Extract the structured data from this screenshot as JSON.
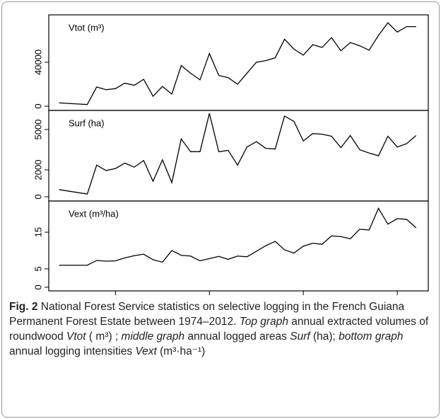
{
  "chart_data": [
    {
      "type": "line",
      "title": "Vtot (m³)",
      "x": [
        1974,
        1977,
        1978,
        1979,
        1980,
        1981,
        1982,
        1983,
        1984,
        1985,
        1986,
        1987,
        1988,
        1989,
        1990,
        1991,
        1992,
        1993,
        1994,
        1995,
        1996,
        1997,
        1998,
        1999,
        2000,
        2001,
        2002,
        2003,
        2004,
        2005,
        2006,
        2007,
        2008,
        2009,
        2010,
        2011,
        2012
      ],
      "values": [
        3000,
        1500,
        17500,
        15000,
        16000,
        21000,
        19000,
        24500,
        9000,
        18000,
        11000,
        37000,
        30000,
        24000,
        48000,
        28000,
        26000,
        20000,
        30000,
        40000,
        41500,
        44000,
        61000,
        52000,
        46500,
        56000,
        53500,
        62500,
        50500,
        58000,
        55000,
        51000,
        64500,
        76000,
        67500,
        72500,
        72500
      ],
      "color": "#000000",
      "ylim": [
        -3870,
        83200
      ],
      "yticks": [
        0,
        40000
      ]
    },
    {
      "type": "line",
      "title": "Surf (ha)",
      "x": [
        1974,
        1977,
        1978,
        1979,
        1980,
        1981,
        1982,
        1983,
        1984,
        1985,
        1986,
        1987,
        1988,
        1989,
        1990,
        1991,
        1992,
        1993,
        1994,
        1995,
        1996,
        1997,
        1998,
        1999,
        2000,
        2001,
        2002,
        2003,
        2004,
        2005,
        2006,
        2007,
        2008,
        2009,
        2010,
        2011,
        2012
      ],
      "values": [
        530,
        200,
        2350,
        1950,
        2100,
        2500,
        2200,
        2700,
        1150,
        2750,
        1050,
        4300,
        3350,
        3350,
        6200,
        3350,
        3450,
        2350,
        3700,
        4100,
        3600,
        3550,
        6000,
        5600,
        4150,
        4700,
        4650,
        4500,
        3650,
        4550,
        3500,
        3250,
        3050,
        4500,
        3700,
        3950,
        4550
      ],
      "color": "#000000",
      "ylim": [
        -316,
        6420
      ],
      "yticks": [
        0,
        2000,
        5000
      ]
    },
    {
      "type": "line",
      "title": "Vext (m³/ha)",
      "x": [
        1974,
        1977,
        1978,
        1979,
        1980,
        1981,
        1982,
        1983,
        1984,
        1985,
        1986,
        1987,
        1988,
        1989,
        1990,
        1991,
        1992,
        1993,
        1994,
        1995,
        1996,
        1997,
        1998,
        1999,
        2000,
        2001,
        2002,
        2003,
        2004,
        2005,
        2006,
        2007,
        2008,
        2009,
        2010,
        2011,
        2012
      ],
      "values": [
        6,
        6,
        7.3,
        7.1,
        7.2,
        8.0,
        8.6,
        9.0,
        7.5,
        6.8,
        10,
        8.7,
        8.5,
        7.2,
        7.8,
        8.4,
        7.6,
        8.5,
        8.3,
        9.8,
        11.3,
        12.5,
        10.2,
        9.3,
        11.2,
        12.0,
        11.7,
        14,
        13.8,
        13.2,
        15.8,
        15.6,
        21.5,
        17.2,
        18.7,
        18.5,
        16.2
      ],
      "color": "#000000",
      "ylim": [
        -1,
        23.5
      ],
      "yticks": [
        0,
        5,
        15
      ],
      "xlim": [
        1972.9,
        2013.3
      ],
      "xticks": [
        1980,
        1990,
        2000,
        2010
      ]
    }
  ],
  "caption": [
    {
      "text": "Fig. 2",
      "style": "bold"
    },
    {
      "text": "  National Forest Service statistics on selective logging in the French Guiana Permanent Forest Estate between 1974–2012. ",
      "style": "normal"
    },
    {
      "text": "Top graph",
      "style": "italic"
    },
    {
      "text": " annual extracted volumes of roundwood ",
      "style": "normal"
    },
    {
      "text": "Vtot",
      "style": "italic"
    },
    {
      "text": " ( m³) ; ",
      "style": "normal"
    },
    {
      "text": "middle graph",
      "style": "italic"
    },
    {
      "text": " annual logged areas ",
      "style": "normal"
    },
    {
      "text": "Surf",
      "style": "italic"
    },
    {
      "text": " (ha); ",
      "style": "normal"
    },
    {
      "text": "bottom graph",
      "style": "italic"
    },
    {
      "text": " annual logging intensities ",
      "style": "normal"
    },
    {
      "text": "Vext",
      "style": "italic"
    },
    {
      "text": " (m³·ha⁻¹)",
      "style": "normal"
    }
  ]
}
